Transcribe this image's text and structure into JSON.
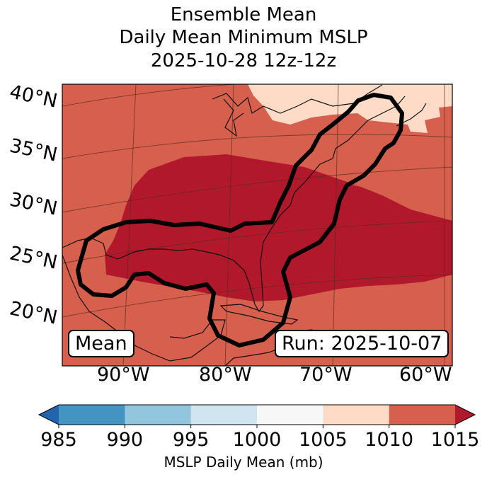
{
  "title": {
    "line1": "Ensemble Mean",
    "line2": "Daily Mean Minimum MSLP",
    "line3": "2025-10-28 12z-12z"
  },
  "map": {
    "lat_labels": [
      "40°N",
      "35°N",
      "30°N",
      "25°N",
      "20°N"
    ],
    "lon_labels": [
      "90°W",
      "80°W",
      "70°W",
      "60°W"
    ],
    "mean_label": "Mean",
    "run_label": "Run: 2025-10-07",
    "colors": {
      "c1015": "#b2182b",
      "c1010": "#d6604d",
      "c1005": "#fddbc7",
      "outline": "#000000"
    }
  },
  "colorbar": {
    "ticks": [
      "985",
      "990",
      "995",
      "1000",
      "1005",
      "1010",
      "1015"
    ],
    "label": "MSLP Daily Mean (mb)",
    "colors": [
      "#2166ac",
      "#4393c3",
      "#92c5de",
      "#d1e5f0",
      "#f7f7f7",
      "#fddbc7",
      "#d6604d",
      "#b2182b"
    ]
  }
}
